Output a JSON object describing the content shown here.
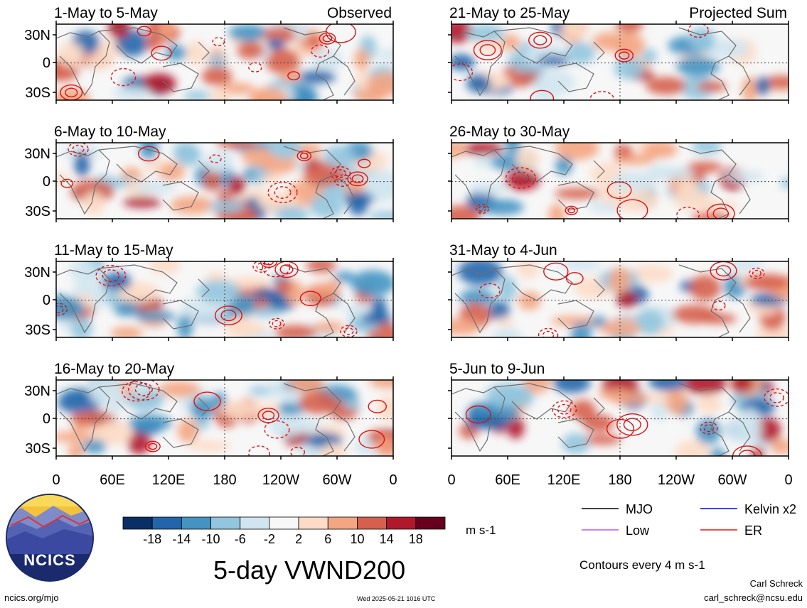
{
  "title": "5-day VWND200",
  "labels": {
    "observed": "Observed",
    "projected": "Projected Sum",
    "units": "m s-1",
    "contours": "Contours every 4 m s-1",
    "author": "Carl Schreck",
    "email": "carl_schreck@ncsu.edu",
    "website": "ncics.org/mjo",
    "timestamp": "Wed 2025-05-21 1016 UTC",
    "logo_text": "NCICS"
  },
  "legend": [
    {
      "label": "MJO",
      "color": "#000000"
    },
    {
      "label": "Kelvin x2",
      "color": "#0000ee"
    },
    {
      "label": "Low",
      "color": "#b65cf0"
    },
    {
      "label": "ER",
      "color": "#ee1111"
    }
  ],
  "chart_data": {
    "type": "heatmap",
    "variable": "VWND200",
    "x_ticks": [
      "0",
      "60E",
      "120E",
      "180",
      "120W",
      "60W",
      "0"
    ],
    "y_ticks": [
      "30N",
      "0",
      "30S"
    ],
    "colorbar": {
      "ticks": [
        "-18",
        "-14",
        "-10",
        "-6",
        "-2",
        "2",
        "6",
        "10",
        "14",
        "18"
      ],
      "colors": [
        "#0a2f66",
        "#2166ac",
        "#4393c3",
        "#92c5de",
        "#d1e5f0",
        "#f7f7f7",
        "#fddbc7",
        "#f4a582",
        "#d6604d",
        "#b2182b",
        "#67001f"
      ]
    },
    "panels": [
      {
        "period": "1-May to 5-May",
        "type": "Observed"
      },
      {
        "period": "6-May to 10-May",
        "type": "Observed"
      },
      {
        "period": "11-May to 15-May",
        "type": "Observed"
      },
      {
        "period": "16-May to 20-May",
        "type": "Observed"
      },
      {
        "period": "21-May to 25-May",
        "type": "Projected Sum"
      },
      {
        "period": "26-May to 30-May",
        "type": "Projected Sum"
      },
      {
        "period": "31-May to 4-Jun",
        "type": "Projected Sum"
      },
      {
        "period": "5-Jun to 9-Jun",
        "type": "Projected Sum"
      }
    ]
  }
}
